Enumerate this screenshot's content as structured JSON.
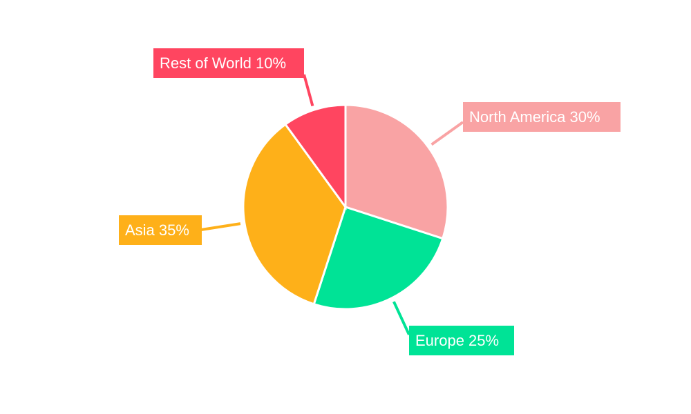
{
  "chart_data": {
    "type": "pie",
    "title": "",
    "start_angle": "12 o'clock, clockwise",
    "legend": "none",
    "slices": [
      {
        "label": "North America",
        "value": 30,
        "data_label": "North America 30%",
        "color": "#f9a3a4"
      },
      {
        "label": "Europe",
        "value": 25,
        "data_label": "Europe 25%",
        "color": "#00e396"
      },
      {
        "label": "Asia",
        "value": 35,
        "data_label": "Asia 35%",
        "color": "#feb019"
      },
      {
        "label": "Rest of World",
        "value": 10,
        "data_label": "Rest of World 10%",
        "color": "#ff4560"
      }
    ]
  }
}
